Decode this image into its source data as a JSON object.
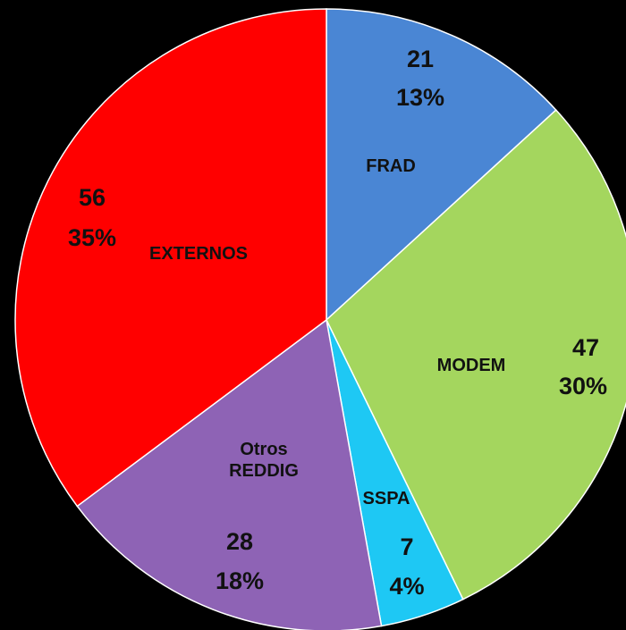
{
  "chart_data": {
    "type": "pie",
    "categories": [
      "FRAD",
      "MODEM",
      "SSPA",
      "Otros REDDIG",
      "EXTERNOS"
    ],
    "values": [
      21,
      47,
      7,
      28,
      56
    ],
    "percent_labels": [
      "13%",
      "30%",
      "4%",
      "18%",
      "35%"
    ],
    "colors": [
      "#4a86d4",
      "#a4d65e",
      "#1ec8f4",
      "#8e63b5",
      "#ff0000"
    ],
    "background": "#000000"
  }
}
